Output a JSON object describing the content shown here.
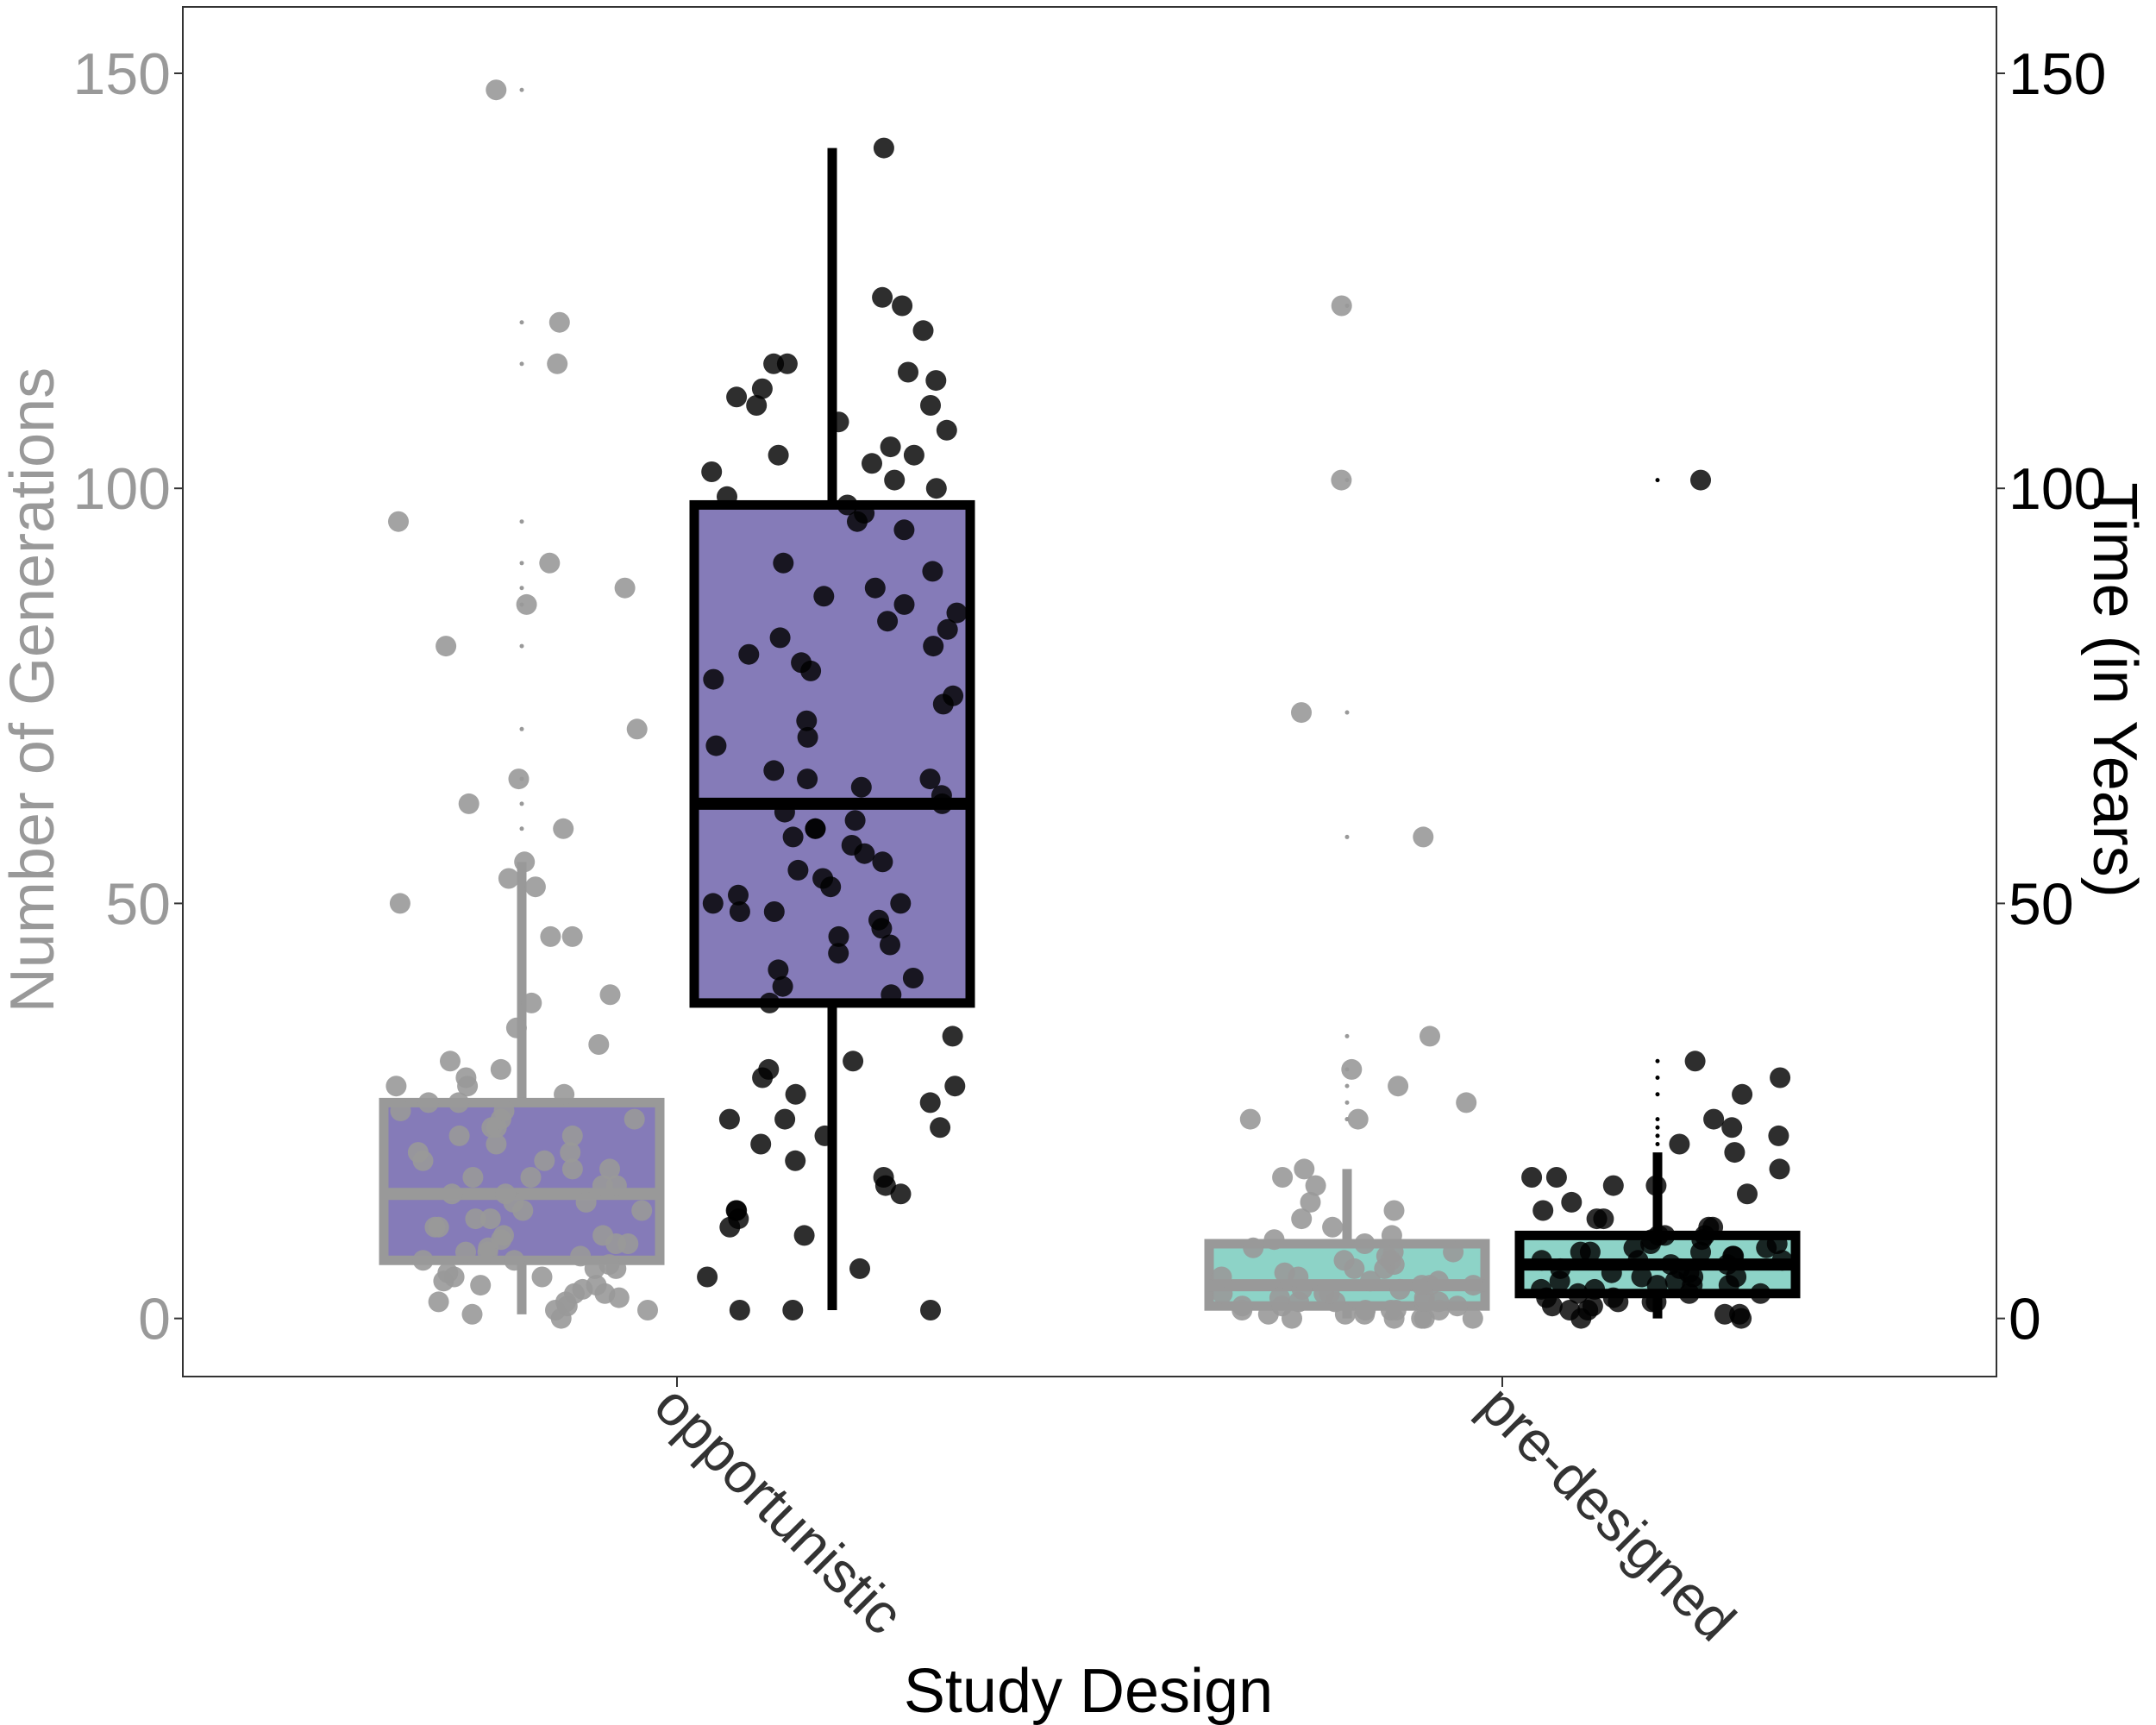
{
  "chart_data": {
    "type": "boxplot",
    "xlabel": "Study Design",
    "ylabel_left": "Number of Generations",
    "ylabel_right": "Time (in Years)",
    "categories": [
      "opportunistic",
      "pre-designed"
    ],
    "left_axis": {
      "ylim": [
        -7,
        158
      ],
      "ticks": [
        0,
        50,
        100,
        150
      ]
    },
    "right_axis": {
      "ylim": [
        -7,
        158
      ],
      "ticks": [
        0,
        50,
        100,
        150
      ]
    },
    "series": [
      {
        "variable": "Number of Generations",
        "axis": "left",
        "stroke": "#999999",
        "boxes": [
          {
            "category": "opportunistic",
            "fill": "#857bb8",
            "whisker_low": 0.5,
            "q1": 7,
            "median": 15,
            "q3": 26,
            "whisker_high": 55,
            "points": [
              0,
              0.5,
              1,
              1,
              1.5,
              2,
              2,
              2.5,
              3,
              3,
              3.5,
              4,
              4,
              4.5,
              5,
              5,
              5.5,
              6,
              6,
              6.5,
              7,
              7,
              7.5,
              8,
              8,
              8.5,
              9,
              9,
              9.5,
              10,
              10,
              11,
              11,
              12,
              12,
              13,
              13,
              14,
              14,
              15,
              15,
              16,
              16,
              17,
              17,
              18,
              18,
              19,
              19,
              20,
              20,
              21,
              22,
              22,
              23,
              23,
              24,
              24,
              25,
              25,
              26,
              26,
              27,
              28,
              28,
              29,
              30,
              31,
              33,
              35,
              38,
              39,
              46,
              46,
              50,
              52,
              53,
              55,
              59,
              62,
              65,
              71,
              81,
              86,
              88,
              91,
              96,
              115,
              120,
              148
            ]
          },
          {
            "category": "pre-designed",
            "fill": "#8dd3c7",
            "whisker_low": 0,
            "q1": 1.5,
            "median": 4,
            "q3": 9,
            "whisker_high": 18,
            "points": [
              0,
              0,
              0,
              0,
              0,
              0.5,
              0.5,
              0.5,
              1,
              1,
              1,
              1,
              1,
              1.5,
              1.5,
              1.5,
              2,
              2,
              2,
              2,
              2.5,
              2.5,
              3,
              3,
              3,
              3.5,
              3.5,
              4,
              4,
              4,
              4.5,
              4.5,
              5,
              5,
              5.5,
              6,
              6,
              6.5,
              7,
              7,
              7.5,
              8,
              8,
              8.5,
              9,
              9.5,
              10,
              11,
              12,
              13,
              14,
              16,
              17,
              18,
              24,
              24,
              26,
              28,
              30,
              34,
              58,
              73,
              101,
              122
            ]
          }
        ]
      },
      {
        "variable": "Time (in Years)",
        "axis": "right",
        "stroke": "#000000",
        "boxes": [
          {
            "category": "opportunistic",
            "fill": "#857bb8",
            "whisker_low": 1,
            "q1": 38,
            "median": 62,
            "q3": 98,
            "whisker_high": 141,
            "points": [
              1,
              1,
              1,
              5,
              6,
              10,
              11,
              12,
              13,
              13,
              15,
              16,
              17,
              19,
              21,
              22,
              23,
              24,
              24,
              26,
              27,
              28,
              29,
              30,
              31,
              34,
              38,
              39,
              40,
              41,
              42,
              44,
              45,
              46,
              47,
              48,
              49,
              49,
              50,
              50,
              51,
              52,
              53,
              54,
              55,
              56,
              57,
              58,
              59,
              59,
              60,
              61,
              62,
              63,
              64,
              65,
              65,
              66,
              69,
              70,
              72,
              74,
              75,
              77,
              78,
              79,
              80,
              81,
              82,
              83,
              84,
              85,
              86,
              87,
              88,
              90,
              91,
              95,
              96,
              97,
              98,
              99,
              100,
              101,
              102,
              103,
              104,
              104,
              105,
              107,
              108,
              110,
              110,
              111,
              112,
              113,
              114,
              115,
              115,
              119,
              122,
              123,
              141
            ]
          },
          {
            "category": "pre-designed",
            "fill": "#8dd3c7",
            "whisker_low": 0,
            "q1": 3,
            "median": 6.5,
            "q3": 10,
            "whisker_high": 20,
            "points": [
              0,
              0,
              0.5,
              0.5,
              1,
              1,
              1.5,
              1.5,
              2,
              2,
              2,
              2.5,
              2.5,
              3,
              3,
              3,
              3.5,
              3.5,
              4,
              4,
              4,
              4.5,
              4.5,
              5,
              5,
              5,
              5.5,
              5.5,
              6,
              6,
              6.5,
              6.5,
              7,
              7,
              7,
              7.5,
              7.5,
              8,
              8,
              8,
              8.5,
              8.5,
              9,
              9,
              9.5,
              9.5,
              10,
              10,
              10,
              11,
              11,
              12,
              12,
              13,
              14,
              15,
              16,
              16,
              17,
              17,
              18,
              20,
              21,
              22,
              23,
              24,
              27,
              29,
              31,
              101
            ]
          }
        ]
      }
    ],
    "grid": false,
    "legend": "none"
  }
}
